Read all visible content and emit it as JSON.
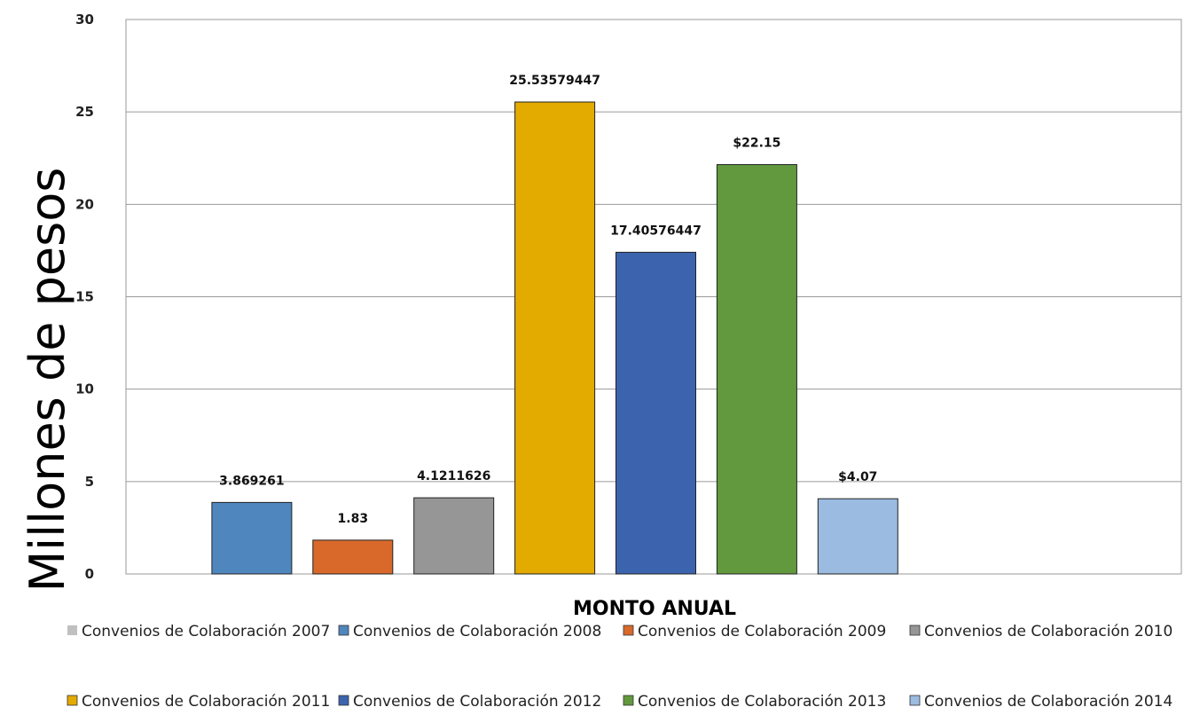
{
  "chart_data": {
    "type": "bar",
    "title": "",
    "xlabel": "MONTO ANUAL",
    "ylabel": "Millones de pesos",
    "ylim": [
      0,
      30
    ],
    "yticks": [
      0,
      5,
      10,
      15,
      20,
      25,
      30
    ],
    "grid": true,
    "legend_position": "bottom",
    "series": [
      {
        "name": "Convenios de Colaboración 2007",
        "value": 0,
        "label": "",
        "color": "#c0c0c0"
      },
      {
        "name": "Convenios de Colaboración 2008",
        "value": 3.869261,
        "label": "3.869261",
        "color": "#4f86be"
      },
      {
        "name": "Convenios de Colaboración 2009",
        "value": 1.83,
        "label": "1.83",
        "color": "#d9692b"
      },
      {
        "name": "Convenios de Colaboración 2010",
        "value": 4.1211626,
        "label": "4.1211626",
        "color": "#969696"
      },
      {
        "name": "Convenios de Colaboración 2011",
        "value": 25.53579447,
        "label": "25.53579447",
        "color": "#e3aa00"
      },
      {
        "name": "Convenios de Colaboración 2012",
        "value": 17.40576447,
        "label": "17.40576447",
        "color": "#3c63ad"
      },
      {
        "name": "Convenios de Colaboración 2013",
        "value": 22.15,
        "label": "$22.15",
        "color": "#62993e"
      },
      {
        "name": "Convenios de Colaboración 2014",
        "value": 4.07,
        "label": "$4.07",
        "color": "#9bbbe0"
      }
    ]
  }
}
